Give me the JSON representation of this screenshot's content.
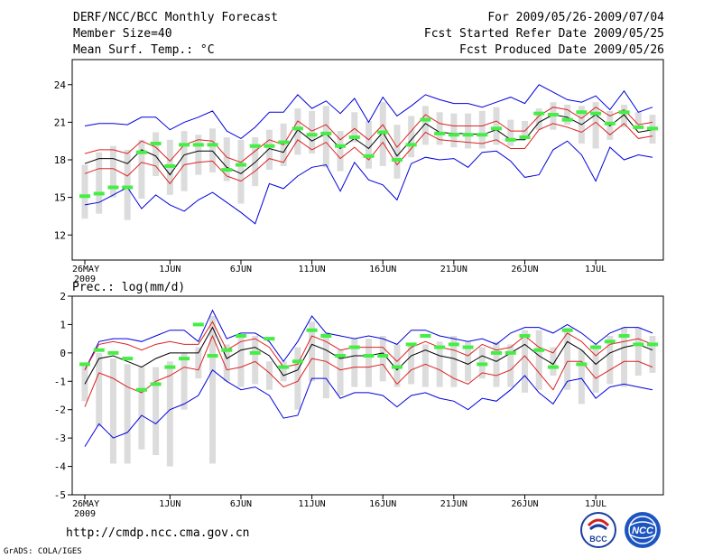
{
  "header": {
    "title": "DERF/NCC/BCC Monthly Forecast",
    "member_size": "Member Size=40",
    "variable": "Mean Surf. Temp.: °C",
    "period": "For 2009/05/26-2009/07/04",
    "started": "Fcst Started Refer Date 2009/05/25",
    "produced": "Fcst Produced Date 2009/05/26"
  },
  "footer": {
    "url": "http://cmdp.ncc.cma.gov.cn",
    "credit": "GrADS: COLA/IGES",
    "logo_left": "BCC",
    "logo_right": "NCC"
  },
  "colors": {
    "ensemble_mean": "#000000",
    "spread_band": "#dd2222",
    "max_min": "#0000dd",
    "observed_bar": "#dcdcdc",
    "climate_mark": "#44ee44"
  },
  "chart_data": [
    {
      "type": "line",
      "title": "Mean Surf. Temp.: °C",
      "x_days": 40,
      "xticks": [
        {
          "day": 0,
          "label": "26MAY",
          "sub": "2009"
        },
        {
          "day": 6,
          "label": "1JUN"
        },
        {
          "day": 11,
          "label": "6JUN"
        },
        {
          "day": 16,
          "label": "11JUN"
        },
        {
          "day": 21,
          "label": "16JUN"
        },
        {
          "day": 26,
          "label": "21JUN"
        },
        {
          "day": 31,
          "label": "26JUN"
        },
        {
          "day": 36,
          "label": "1JUL"
        }
      ],
      "ylim": [
        10,
        26
      ],
      "yticks": [
        12,
        15,
        18,
        21,
        24
      ],
      "series": [
        {
          "name": "max",
          "role": "max",
          "values": [
            20.7,
            20.9,
            20.9,
            20.8,
            21.4,
            21.4,
            20.4,
            21.0,
            21.4,
            21.9,
            20.3,
            19.7,
            20.6,
            21.8,
            21.8,
            23.2,
            22.1,
            22.7,
            21.7,
            22.9,
            21.0,
            23.0,
            21.5,
            22.3,
            23.2,
            22.8,
            22.5,
            22.5,
            22.2,
            22.6,
            23.0,
            22.5,
            24.0,
            23.4,
            22.8,
            22.6,
            23.1,
            22.0,
            23.5,
            21.8,
            22.2
          ]
        },
        {
          "name": "upper",
          "role": "upper",
          "values": [
            18.5,
            18.8,
            18.8,
            18.5,
            19.5,
            19.0,
            17.9,
            19.2,
            19.6,
            19.5,
            18.2,
            17.8,
            18.7,
            19.6,
            19.2,
            21.1,
            20.3,
            20.8,
            19.6,
            20.5,
            19.6,
            20.8,
            19.0,
            20.3,
            21.6,
            20.9,
            20.7,
            20.7,
            20.7,
            21.1,
            20.3,
            20.3,
            21.5,
            22.2,
            22.0,
            21.3,
            22.2,
            21.5,
            22.0,
            20.8,
            21.0
          ]
        },
        {
          "name": "ensemble mean",
          "role": "mean",
          "values": [
            17.7,
            18.1,
            18.1,
            17.7,
            18.8,
            18.3,
            16.8,
            18.4,
            18.7,
            18.7,
            17.4,
            16.9,
            17.8,
            18.9,
            18.6,
            20.4,
            19.5,
            20.1,
            18.9,
            19.7,
            18.9,
            20.2,
            18.3,
            19.6,
            20.9,
            20.2,
            20.1,
            20.1,
            20.0,
            20.4,
            19.6,
            19.6,
            21.0,
            21.6,
            21.4,
            20.8,
            21.6,
            20.7,
            21.6,
            20.2,
            20.4
          ]
        },
        {
          "name": "lower",
          "role": "lower",
          "values": [
            16.9,
            17.3,
            17.3,
            16.7,
            17.8,
            17.5,
            16.1,
            17.6,
            17.8,
            17.9,
            16.7,
            16.3,
            17.1,
            18.1,
            17.8,
            19.6,
            18.8,
            19.4,
            18.1,
            19.0,
            18.0,
            19.4,
            17.6,
            18.9,
            20.2,
            19.6,
            19.5,
            19.4,
            19.3,
            19.6,
            18.9,
            18.9,
            20.4,
            20.9,
            20.6,
            20.2,
            21.0,
            20.0,
            20.9,
            19.7,
            19.9
          ]
        },
        {
          "name": "min",
          "role": "min",
          "values": [
            14.4,
            14.6,
            15.2,
            15.8,
            14.1,
            15.2,
            14.4,
            13.9,
            14.8,
            15.4,
            14.6,
            13.8,
            12.9,
            16.1,
            15.7,
            16.7,
            17.4,
            17.6,
            15.5,
            17.8,
            16.4,
            16.0,
            14.8,
            17.7,
            18.2,
            18.0,
            18.1,
            17.4,
            18.6,
            18.7,
            17.9,
            16.6,
            16.8,
            18.8,
            19.5,
            18.4,
            16.3,
            19.0,
            18.0,
            18.4,
            18.2
          ]
        },
        {
          "name": "observed",
          "role": "bar",
          "lows": [
            13.3,
            13.7,
            15.0,
            13.2,
            14.9,
            16.7,
            15.2,
            15.5,
            16.8,
            17.0,
            16.3,
            14.5,
            15.9,
            17.2,
            17.5,
            18.4,
            18.5,
            17.4,
            17.1,
            19.4,
            17.3,
            17.5,
            16.5,
            18.2,
            19.2,
            19.2,
            19.0,
            18.9,
            18.9,
            19.2,
            19.1,
            19.9,
            20.4,
            20.4,
            20.8,
            19.3,
            18.9,
            19.6,
            20.6,
            20.8,
            19.3
          ],
          "highs": [
            17.6,
            18.6,
            19.1,
            18.8,
            19.6,
            20.2,
            19.6,
            20.3,
            20.0,
            20.5,
            19.8,
            19.6,
            19.8,
            20.4,
            20.9,
            22.1,
            21.9,
            22.3,
            20.3,
            21.8,
            21.1,
            22.6,
            20.8,
            21.5,
            22.3,
            21.8,
            21.7,
            21.7,
            21.9,
            22.2,
            21.2,
            21.1,
            22.1,
            22.6,
            22.4,
            22.3,
            22.6,
            21.9,
            22.4,
            21.8,
            21.6
          ]
        },
        {
          "name": "climate",
          "role": "mark",
          "values": [
            15.1,
            15.3,
            15.8,
            15.8,
            18.6,
            19.3,
            17.5,
            19.2,
            19.2,
            19.2,
            17.2,
            17.6,
            19.1,
            19.1,
            19.4,
            20.5,
            20.0,
            20.1,
            19.1,
            19.8,
            18.3,
            20.2,
            18.0,
            19.2,
            21.2,
            20.1,
            20.0,
            20.0,
            20.0,
            20.5,
            19.6,
            19.8,
            21.7,
            21.6,
            21.2,
            21.8,
            21.7,
            20.9,
            21.8,
            20.6,
            20.5
          ]
        }
      ]
    },
    {
      "type": "line",
      "title": "Prec.: log(mm/d)",
      "x_days": 40,
      "xticks": [
        {
          "day": 0,
          "label": "26MAY",
          "sub": "2009"
        },
        {
          "day": 6,
          "label": "1JUN"
        },
        {
          "day": 11,
          "label": "6JUN"
        },
        {
          "day": 16,
          "label": "11JUN"
        },
        {
          "day": 21,
          "label": "16JUN"
        },
        {
          "day": 26,
          "label": "21JUN"
        },
        {
          "day": 31,
          "label": "26JUN"
        },
        {
          "day": 36,
          "label": "1JUL"
        }
      ],
      "ylim": [
        -5,
        2
      ],
      "yticks": [
        -5,
        -4,
        -3,
        -2,
        -1,
        0,
        1,
        2
      ],
      "series": [
        {
          "name": "max",
          "role": "max",
          "values": [
            -3.3,
            -2.5,
            -3.0,
            -2.8,
            -2.2,
            -2.5,
            -2.0,
            -1.8,
            -1.5,
            -0.6,
            -1.0,
            -1.3,
            -1.2,
            -1.5,
            -2.3,
            -2.2,
            -0.9,
            -0.9,
            -1.6,
            -1.4,
            -1.4,
            -1.5,
            -1.9,
            -1.5,
            -1.4,
            -1.6,
            -1.7,
            -2.0,
            -1.6,
            -1.7,
            -1.3,
            -0.8,
            -1.4,
            -1.8,
            -1.0,
            -0.9,
            -1.6,
            -1.2,
            -1.1,
            -1.2,
            -1.3
          ]
        },
        {
          "name": "upper",
          "role": "upper",
          "values": [
            -1.9,
            -0.7,
            -0.9,
            -1.2,
            -1.4,
            -1.0,
            -0.8,
            -0.5,
            -0.6,
            0.6,
            -0.6,
            -0.5,
            -0.3,
            -0.7,
            -1.2,
            -1.0,
            -0.2,
            -0.3,
            -0.6,
            -0.5,
            -0.5,
            -0.4,
            -1.1,
            -0.6,
            -0.4,
            -0.6,
            -0.9,
            -1.1,
            -0.7,
            -0.8,
            -0.6,
            -0.1,
            -0.7,
            -1.3,
            -0.3,
            -0.3,
            -0.9,
            -0.6,
            -0.3,
            -0.3,
            -0.5
          ]
        },
        {
          "name": "ensemble mean",
          "role": "mean",
          "values": [
            -1.1,
            -0.2,
            -0.1,
            -0.3,
            -0.5,
            -0.2,
            0.0,
            0.0,
            0.0,
            0.9,
            -0.2,
            0.1,
            0.2,
            -0.1,
            -0.8,
            -0.6,
            0.3,
            0.1,
            -0.2,
            -0.1,
            -0.1,
            0.0,
            -0.6,
            -0.1,
            0.1,
            -0.1,
            -0.2,
            -0.4,
            -0.1,
            -0.3,
            0.0,
            0.3,
            -0.1,
            -0.4,
            0.4,
            0.1,
            -0.4,
            0.0,
            0.2,
            0.3,
            0.1
          ]
        },
        {
          "name": "lower",
          "role": "lower",
          "values": [
            -0.6,
            0.3,
            0.4,
            0.3,
            0.1,
            0.3,
            0.4,
            0.3,
            0.3,
            1.1,
            0.1,
            0.4,
            0.5,
            0.2,
            -0.5,
            -0.4,
            0.6,
            0.4,
            0.1,
            0.2,
            0.2,
            0.2,
            -0.3,
            0.2,
            0.4,
            0.2,
            0.1,
            -0.1,
            0.3,
            0.1,
            0.2,
            0.6,
            0.2,
            0.0,
            0.7,
            0.4,
            -0.1,
            0.3,
            0.4,
            0.5,
            0.3
          ]
        },
        {
          "name": "min",
          "role": "min",
          "values": [
            -0.6,
            0.4,
            0.5,
            0.5,
            0.4,
            0.6,
            0.8,
            0.8,
            0.4,
            1.5,
            0.5,
            0.7,
            0.7,
            0.4,
            -0.3,
            0.4,
            1.3,
            0.7,
            0.6,
            0.5,
            0.6,
            0.5,
            0.3,
            0.8,
            0.8,
            0.6,
            0.5,
            0.4,
            0.5,
            0.3,
            0.7,
            0.9,
            0.9,
            0.7,
            1.0,
            0.7,
            0.3,
            0.7,
            0.9,
            0.9,
            0.7
          ]
        },
        {
          "name": "observed",
          "role": "bar",
          "lows": [
            -1.7,
            -2.6,
            -3.9,
            -3.9,
            -3.4,
            -3.6,
            -4.0,
            -2.0,
            -0.9,
            -3.9,
            -1.0,
            -1.2,
            -1.1,
            -1.3,
            -1.0,
            -2.0,
            -1.0,
            -1.6,
            -1.5,
            -1.2,
            -1.2,
            -1.0,
            -1.2,
            -1.1,
            -1.2,
            -1.2,
            -1.2,
            -1.0,
            -0.9,
            -1.2,
            -1.2,
            -1.4,
            -1.3,
            -0.8,
            -1.3,
            -1.8,
            -1.4,
            -1.1,
            -1.2,
            -0.8,
            -0.7
          ],
          "highs": [
            -0.4,
            0.0,
            -0.2,
            -0.4,
            -0.5,
            -0.5,
            -0.3,
            0.0,
            0.2,
            1.3,
            0.3,
            0.6,
            0.6,
            -0.3,
            -0.3,
            0.2,
            1.1,
            0.7,
            0.1,
            0.5,
            0.5,
            0.6,
            0.3,
            0.3,
            0.3,
            0.4,
            0.6,
            0.4,
            0.2,
            0.4,
            0.3,
            0.8,
            0.8,
            0.2,
            0.9,
            0.1,
            0.3,
            0.6,
            0.9,
            0.9,
            0.6
          ]
        },
        {
          "name": "climate",
          "role": "mark",
          "values": [
            -0.4,
            0.1,
            0.0,
            -0.2,
            -1.3,
            -1.1,
            -0.5,
            -0.2,
            1.0,
            -0.1,
            0.1,
            0.6,
            0.0,
            0.5,
            -0.5,
            -0.3,
            0.8,
            0.6,
            -0.1,
            0.2,
            -0.1,
            -0.1,
            -0.5,
            0.3,
            0.6,
            0.2,
            0.3,
            0.2,
            -0.4,
            0.0,
            0.0,
            0.6,
            0.1,
            -0.5,
            0.8,
            -0.4,
            0.2,
            0.4,
            0.6,
            0.3,
            0.3
          ]
        }
      ]
    }
  ]
}
